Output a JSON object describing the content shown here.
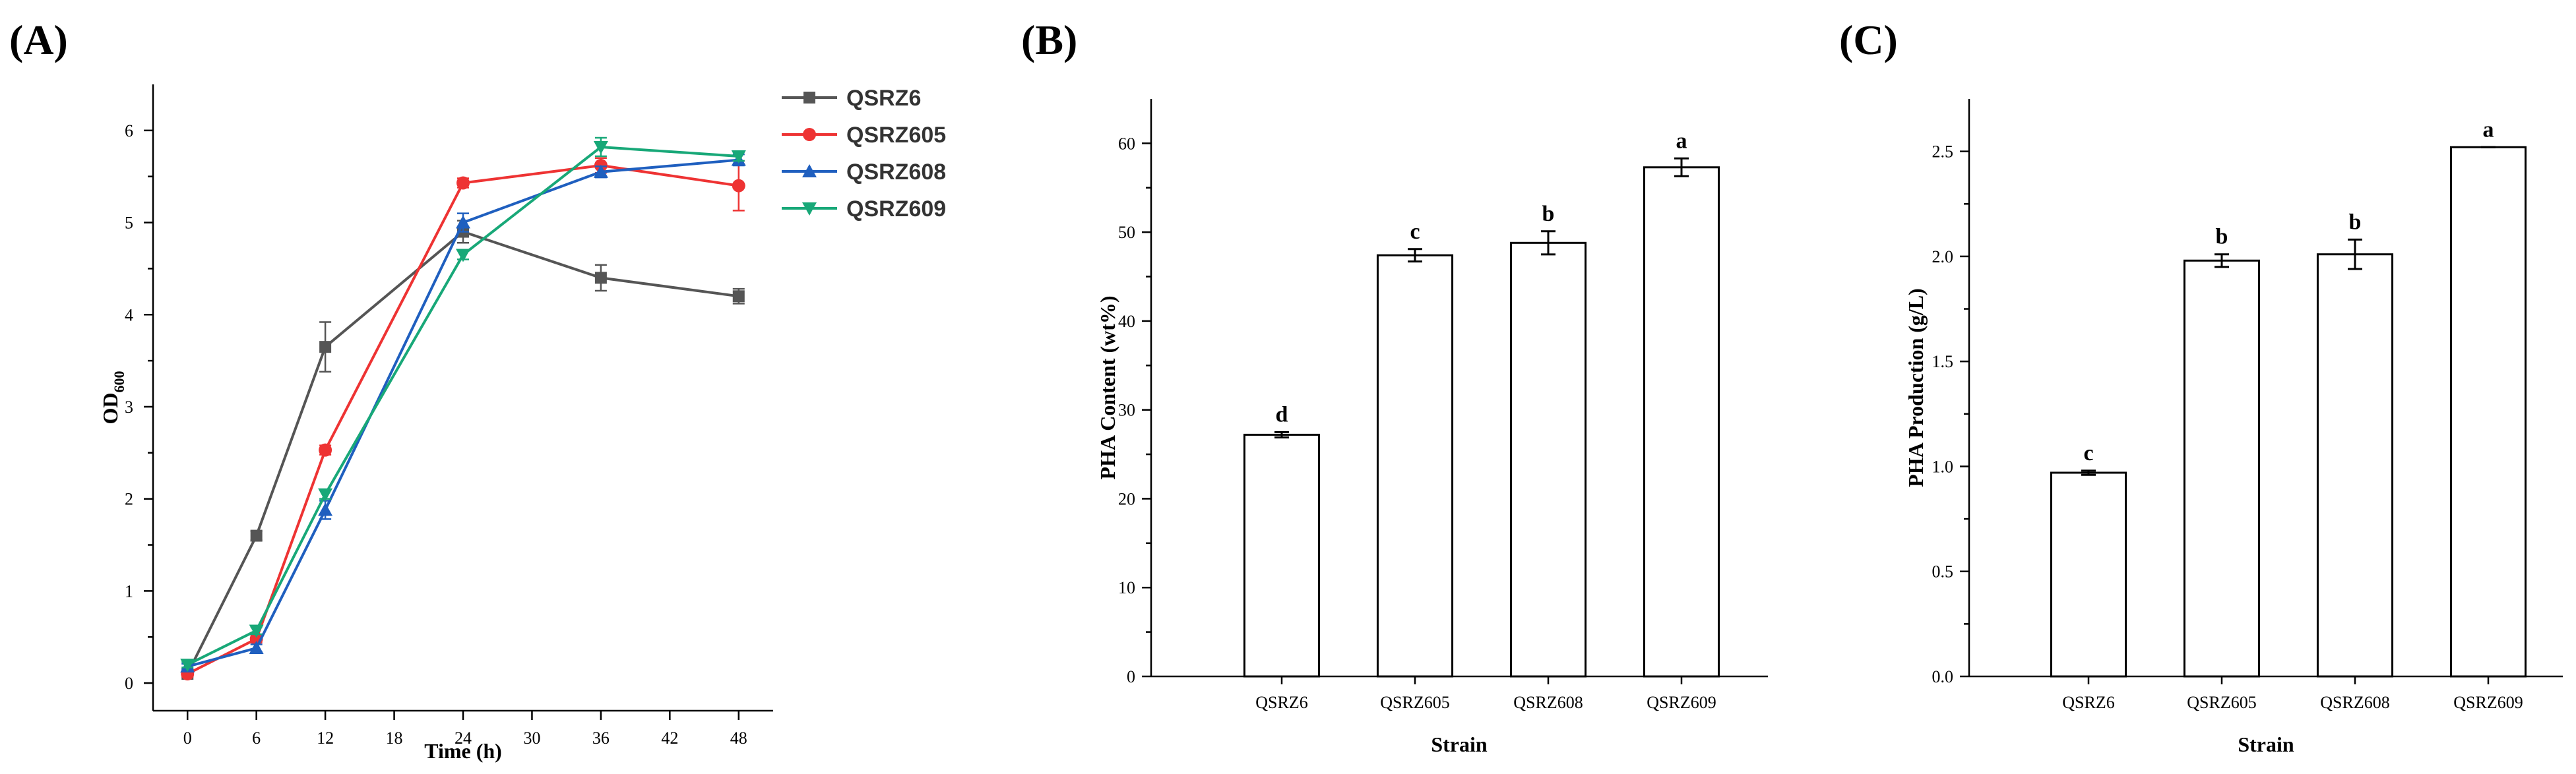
{
  "chart_data": [
    {
      "panel": "(A)",
      "type": "line",
      "xlabel": "Time (h)",
      "ylabel_main": "OD",
      "ylabel_sub": "600",
      "x": [
        0,
        6,
        12,
        24,
        36,
        48
      ],
      "xticks": [
        0,
        6,
        12,
        18,
        24,
        30,
        36,
        42,
        48
      ],
      "yticks": [
        0,
        1,
        2,
        3,
        4,
        5,
        6
      ],
      "xlim": [
        -3,
        51
      ],
      "ylim": [
        -0.3,
        6.5
      ],
      "legend_position": "top-right",
      "series": [
        {
          "name": "QSRZ6",
          "color": "#555555",
          "marker": "square",
          "values": [
            0.1,
            1.6,
            3.65,
            4.9,
            4.4,
            4.2
          ],
          "errors": [
            0.03,
            0.05,
            0.27,
            0.12,
            0.14,
            0.08
          ]
        },
        {
          "name": "QSRZ605",
          "color": "#ee3333",
          "marker": "circle",
          "values": [
            0.1,
            0.48,
            2.53,
            5.43,
            5.62,
            5.4
          ],
          "errors": [
            0.03,
            0.04,
            0.05,
            0.05,
            0.08,
            0.27
          ]
        },
        {
          "name": "QSRZ608",
          "color": "#1f5fbf",
          "marker": "triangle-up",
          "values": [
            0.18,
            0.38,
            1.88,
            5.0,
            5.55,
            5.68
          ],
          "errors": [
            0.03,
            0.04,
            0.1,
            0.1,
            0.06,
            0.06
          ]
        },
        {
          "name": "QSRZ609",
          "color": "#18a878",
          "marker": "triangle-down",
          "values": [
            0.2,
            0.57,
            2.05,
            4.65,
            5.82,
            5.72
          ],
          "errors": [
            0.03,
            0.04,
            0.05,
            0.05,
            0.1,
            0.05
          ]
        }
      ]
    },
    {
      "panel": "(B)",
      "type": "bar",
      "xlabel": "Strain",
      "ylabel": "PHA Content (wt%)",
      "categories": [
        "QSRZ6",
        "QSRZ605",
        "QSRZ608",
        "QSRZ609"
      ],
      "values": [
        27.2,
        47.4,
        48.8,
        57.3
      ],
      "errors": [
        0.3,
        0.7,
        1.3,
        1.0
      ],
      "letters": [
        "d",
        "c",
        "b",
        "a"
      ],
      "yticks": [
        0,
        10,
        20,
        30,
        40,
        50,
        60
      ],
      "ylim": [
        0,
        65
      ]
    },
    {
      "panel": "(C)",
      "type": "bar",
      "xlabel": "Strain",
      "ylabel": "PHA Production (g/L)",
      "categories": [
        "QSRZ6",
        "QSRZ605",
        "QSRZ608",
        "QSRZ609"
      ],
      "values": [
        0.97,
        1.98,
        2.01,
        2.52
      ],
      "errors": [
        0.01,
        0.03,
        0.07,
        0.0
      ],
      "letters": [
        "c",
        "b",
        "b",
        "a"
      ],
      "yticks": [
        "0.0",
        "0.5",
        "1.0",
        "1.5",
        "2.0",
        "2.5"
      ],
      "ylim": [
        0,
        2.75
      ]
    }
  ]
}
